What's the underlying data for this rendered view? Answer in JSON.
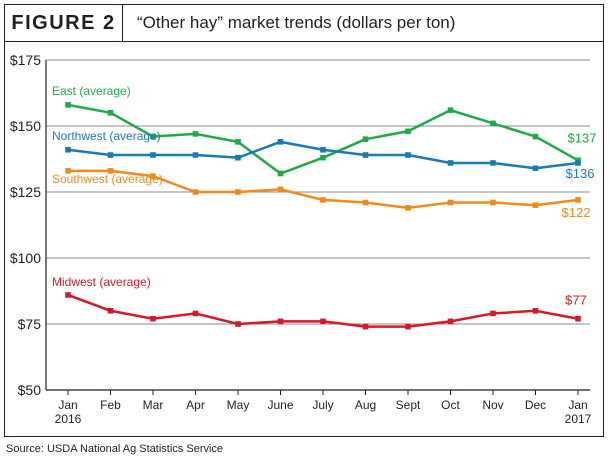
{
  "figure_label": "FIGURE 2",
  "source": "Source: USDA National Ag Statistics Service",
  "chart_data": {
    "type": "line",
    "title": "“Other hay” market trends (dollars per ton)",
    "categories": [
      "Jan 2016",
      "Feb",
      "Mar",
      "Apr",
      "May",
      "June",
      "July",
      "Aug",
      "Sept",
      "Oct",
      "Nov",
      "Dec",
      "Jan 2017"
    ],
    "x_tick_lines": [
      [
        "Jan",
        "2016"
      ],
      [
        "Feb"
      ],
      [
        "Mar"
      ],
      [
        "Apr"
      ],
      [
        "May"
      ],
      [
        "June"
      ],
      [
        "July"
      ],
      [
        "Aug"
      ],
      [
        "Sept"
      ],
      [
        "Oct"
      ],
      [
        "Nov"
      ],
      [
        "Dec"
      ],
      [
        "Jan",
        "2017"
      ]
    ],
    "y_ticks": [
      "$50",
      "$75",
      "$100",
      "$125",
      "$150",
      "$175"
    ],
    "y_tick_values": [
      50,
      75,
      100,
      125,
      150,
      175
    ],
    "ylim": [
      50,
      175
    ],
    "grid": true,
    "series": [
      {
        "name": "East (average)",
        "color": "#1faa48",
        "values": [
          158,
          155,
          146,
          147,
          144,
          132,
          138,
          145,
          148,
          156,
          151,
          146,
          137
        ],
        "end_label": "$137"
      },
      {
        "name": "Northwest (average)",
        "color": "#1a7ab5",
        "values": [
          141,
          139,
          139,
          139,
          138,
          144,
          141,
          139,
          139,
          136,
          136,
          134,
          136
        ],
        "end_label": "$136"
      },
      {
        "name": "Southwest (average)",
        "color": "#f08a1c",
        "values": [
          133,
          133,
          131,
          125,
          125,
          126,
          122,
          121,
          119,
          121,
          121,
          120,
          122
        ],
        "end_label": "$122"
      },
      {
        "name": "Midwest (average)",
        "color": "#d7182a",
        "values": [
          86,
          80,
          77,
          79,
          75,
          76,
          76,
          74,
          74,
          76,
          79,
          80,
          77
        ],
        "end_label": "$77"
      }
    ]
  }
}
